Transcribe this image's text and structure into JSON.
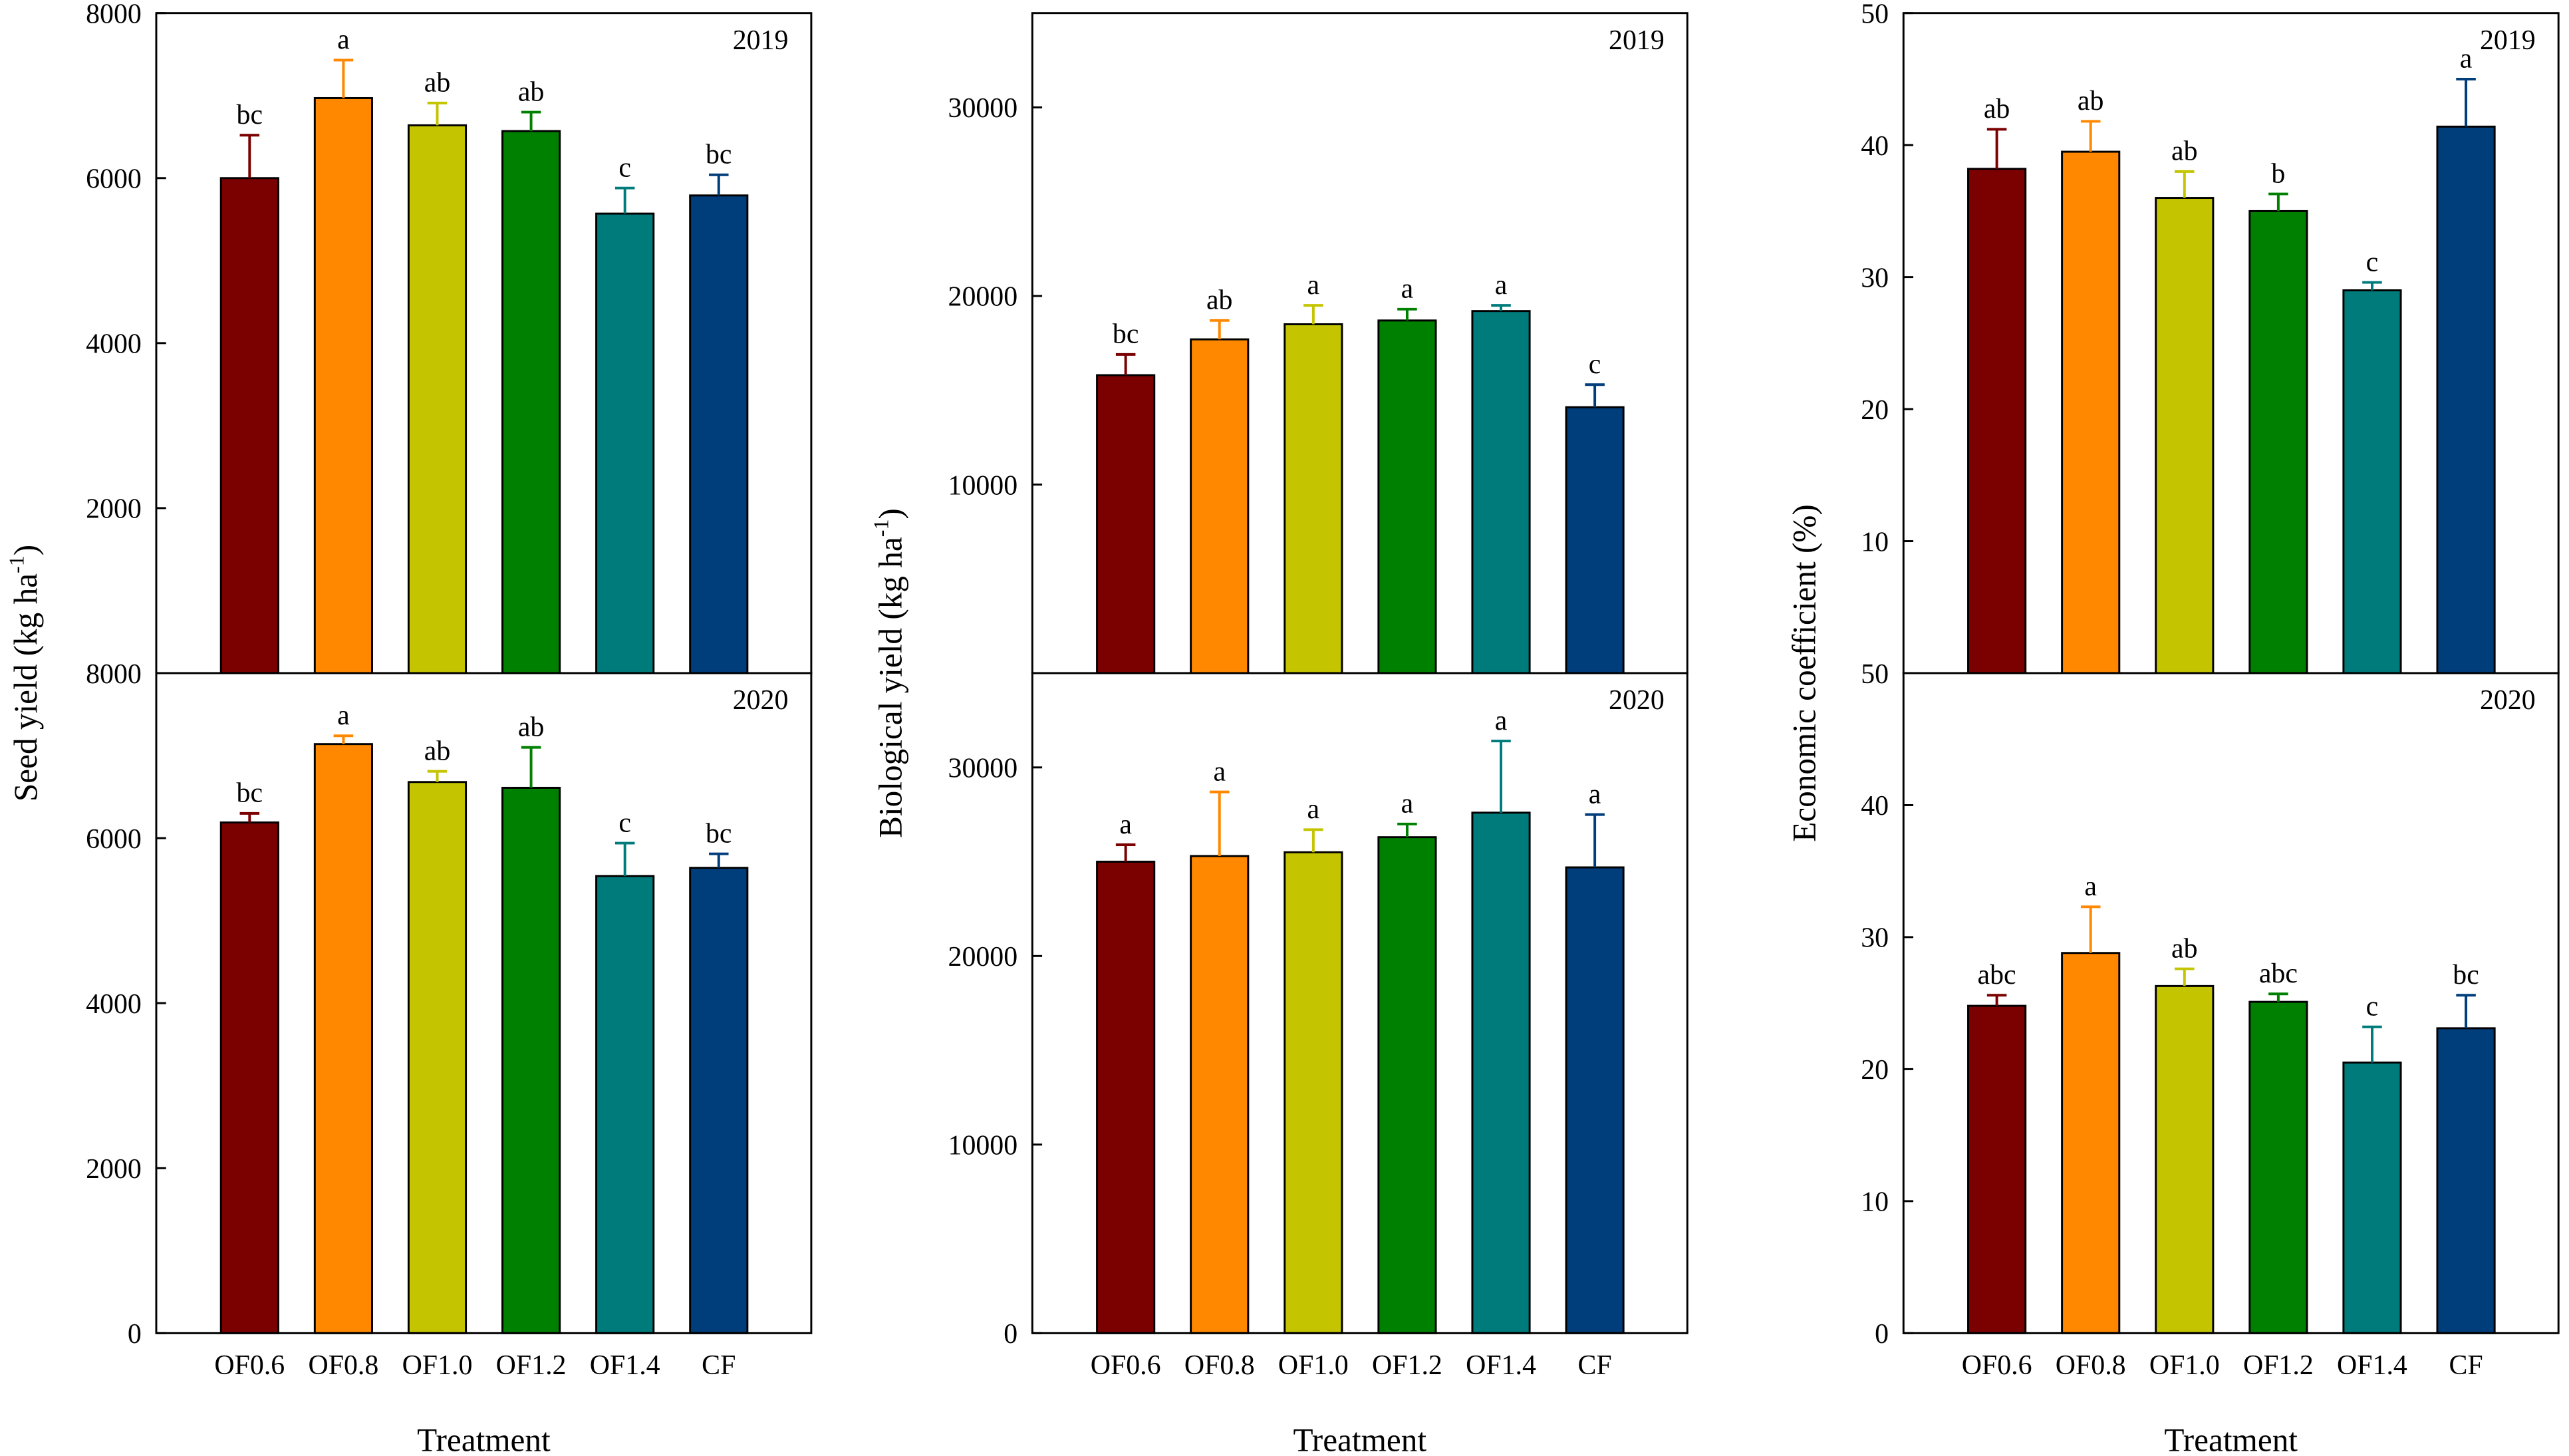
{
  "figure": {
    "xlabel": "Treatment",
    "categories": [
      "OF0.6",
      "OF0.8",
      "OF1.0",
      "OF1.2",
      "OF1.4",
      "CF"
    ],
    "colors": [
      "#7b0000",
      "#ff8800",
      "#c4c400",
      "#008000",
      "#007b7b",
      "#003d7b"
    ]
  },
  "chart_data": [
    {
      "type": "bar",
      "id": "seed-2019",
      "column": 0,
      "row": 0,
      "title": "2019",
      "ylabel": "Seed yield (kg ha-1)",
      "ylim": [
        0,
        8000
      ],
      "ticks": [
        2000,
        4000,
        6000,
        8000
      ],
      "values": [
        6000,
        6970,
        6640,
        6570,
        5570,
        5790
      ],
      "errors": [
        520,
        460,
        270,
        230,
        310,
        250
      ],
      "letters": [
        "bc",
        "a",
        "ab",
        "ab",
        "c",
        "bc"
      ]
    },
    {
      "type": "bar",
      "id": "seed-2020",
      "column": 0,
      "row": 1,
      "title": "2020",
      "ylabel": "Seed yield (kg ha-1)",
      "ylim": [
        0,
        8000
      ],
      "ticks": [
        0,
        2000,
        4000,
        6000,
        8000
      ],
      "values": [
        6190,
        7140,
        6680,
        6610,
        5540,
        5640
      ],
      "errors": [
        110,
        100,
        130,
        490,
        400,
        170
      ],
      "letters": [
        "bc",
        "a",
        "ab",
        "ab",
        "c",
        "bc"
      ]
    },
    {
      "type": "bar",
      "id": "bio-2019",
      "column": 1,
      "row": 0,
      "title": "2019",
      "ylabel": "Biological yield (kg ha-1)",
      "ylim": [
        0,
        35000
      ],
      "ticks": [
        10000,
        20000,
        30000
      ],
      "values": [
        15800,
        17700,
        18500,
        18700,
        19200,
        14100
      ],
      "errors": [
        1100,
        1000,
        1000,
        600,
        300,
        1200
      ],
      "letters": [
        "bc",
        "ab",
        "a",
        "a",
        "a",
        "c"
      ]
    },
    {
      "type": "bar",
      "id": "bio-2020",
      "column": 1,
      "row": 1,
      "title": "2020",
      "ylabel": "Biological yield (kg ha-1)",
      "ylim": [
        0,
        35000
      ],
      "ticks": [
        0,
        10000,
        20000,
        30000
      ],
      "values": [
        25000,
        25300,
        25500,
        26300,
        27600,
        24700
      ],
      "errors": [
        900,
        3400,
        1200,
        700,
        3800,
        2800
      ],
      "letters": [
        "a",
        "a",
        "a",
        "a",
        "a",
        "a"
      ]
    },
    {
      "type": "bar",
      "id": "econ-2019",
      "column": 2,
      "row": 0,
      "title": "2019",
      "ylabel": "Economic coefficient (%)",
      "ylim": [
        0,
        50
      ],
      "ticks": [
        10,
        20,
        30,
        40,
        50
      ],
      "values": [
        38.2,
        39.5,
        36.0,
        35.0,
        29.0,
        41.4
      ],
      "errors": [
        3.0,
        2.3,
        2.0,
        1.3,
        0.6,
        3.6
      ],
      "letters": [
        "ab",
        "ab",
        "ab",
        "b",
        "c",
        "a"
      ]
    },
    {
      "type": "bar",
      "id": "econ-2020",
      "column": 2,
      "row": 1,
      "title": "2020",
      "ylabel": "Economic coefficient (%)",
      "ylim": [
        0,
        50
      ],
      "ticks": [
        0,
        10,
        20,
        30,
        40,
        50
      ],
      "values": [
        24.8,
        28.8,
        26.3,
        25.1,
        20.5,
        23.1
      ],
      "errors": [
        0.8,
        3.5,
        1.3,
        0.6,
        2.7,
        2.5
      ],
      "letters": [
        "abc",
        "a",
        "ab",
        "abc",
        "c",
        "bc"
      ]
    }
  ]
}
